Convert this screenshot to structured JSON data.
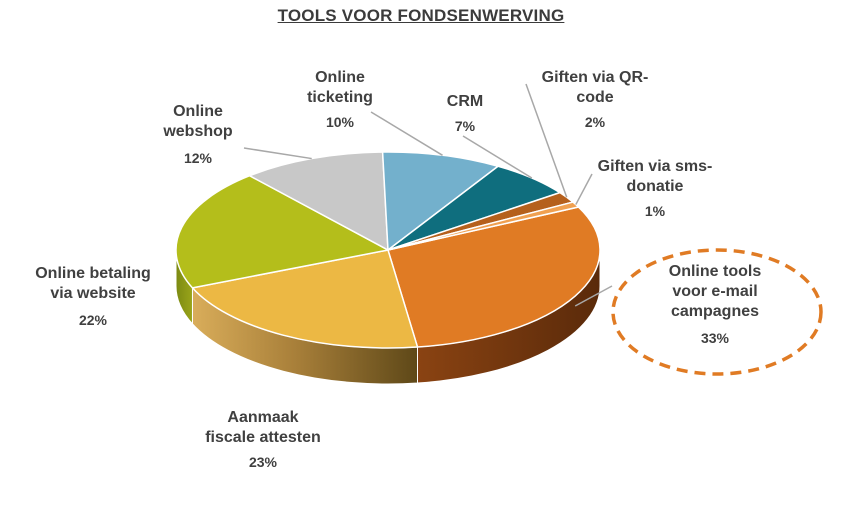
{
  "chart_data": {
    "type": "pie",
    "title": "TOOLS VOOR FONDSENWERVING",
    "slices": [
      {
        "label": "Online tools voor e-mail campagnes",
        "lines": [
          "Online tools",
          "voor e-mail",
          "campagnes"
        ],
        "value": 33,
        "value_label": "33%",
        "color": "#E07B24"
      },
      {
        "label": "Aanmaak fiscale attesten",
        "lines": [
          "Aanmaak",
          "fiscale attesten"
        ],
        "value": 23,
        "value_label": "23%",
        "color": "#ECB844"
      },
      {
        "label": "Online betaling via website",
        "lines": [
          "Online betaling",
          "via website"
        ],
        "value": 22,
        "value_label": "22%",
        "color": "#B4BE1B"
      },
      {
        "label": "Online webshop",
        "lines": [
          "Online",
          "webshop"
        ],
        "value": 12,
        "value_label": "12%",
        "color": "#C8C8C8"
      },
      {
        "label": "Online ticketing",
        "lines": [
          "Online",
          "ticketing"
        ],
        "value": 10,
        "value_label": "10%",
        "color": "#73B0CC"
      },
      {
        "label": "CRM",
        "lines": [
          "CRM"
        ],
        "value": 7,
        "value_label": "7%",
        "color": "#0F6E7E"
      },
      {
        "label": "Giften via QR-code",
        "lines": [
          "Giften via QR-",
          "code"
        ],
        "value": 2,
        "value_label": "2%",
        "color": "#B5601C"
      },
      {
        "label": "Giften via sms-donatie",
        "lines": [
          "Giften via sms-",
          "donatie"
        ],
        "value": 1,
        "value_label": "1%",
        "color": "#F0A050"
      }
    ],
    "highlighted_slice": "Online tools voor e-mail campagnes",
    "highlight_color": "#E07B24",
    "legend": "none"
  }
}
